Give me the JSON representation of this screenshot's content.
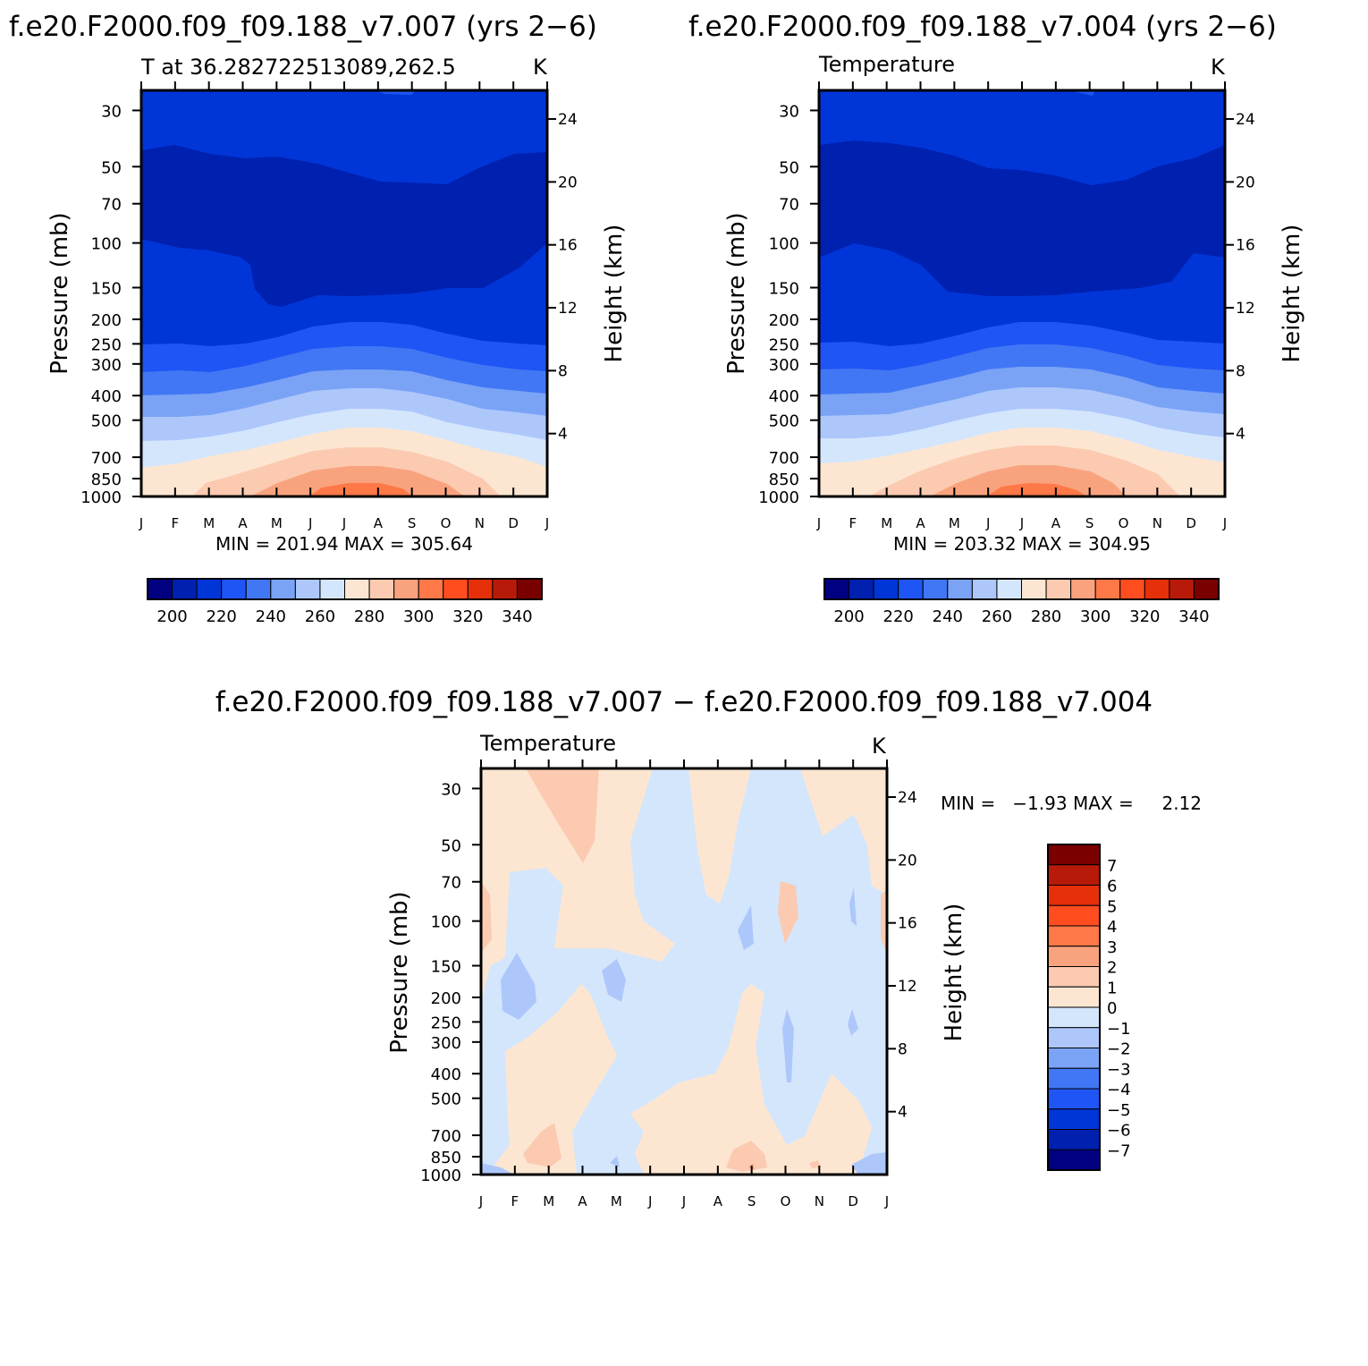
{
  "figure": {
    "panel1_title": "f.e20.F2000.f09_f09.188_v7.007 (yrs 2−6)",
    "panel2_title": "f.e20.F2000.f09_f09.188_v7.004 (yrs 2−6)",
    "diff_title": "f.e20.F2000.f09_f09.188_v7.007 − f.e20.F2000.f09_f09.188_v7.004"
  },
  "chart_data": [
    {
      "type": "heatmap",
      "title": "f.e20.F2000.f09_f09.188_v7.007 (yrs 2−6)",
      "subtitle": "T at 36.282722513089,262.5",
      "units": "K",
      "xlabel": "",
      "ylabel": "Pressure (mb)",
      "ylabel_right": "Height (km)",
      "x_ticks": [
        "J",
        "F",
        "M",
        "A",
        "M",
        "J",
        "J",
        "A",
        "S",
        "O",
        "N",
        "D",
        "J"
      ],
      "y_ticks": [
        30,
        50,
        70,
        100,
        150,
        200,
        250,
        300,
        400,
        500,
        700,
        850,
        1000
      ],
      "y_right_ticks": [
        4,
        8,
        12,
        16,
        20,
        24
      ],
      "ylim": [
        1000,
        25
      ],
      "y_scale": "log",
      "stats": "MIN = 201.94 MAX = 305.64",
      "colorbar_labels": [
        200,
        220,
        240,
        260,
        280,
        300,
        320,
        340
      ],
      "colorbar_colors": [
        "#000080",
        "#0020b0",
        "#0036d8",
        "#1f55f4",
        "#4177f4",
        "#7aa3f6",
        "#adc7fb",
        "#d4e6fc",
        "#fde6d1",
        "#fbcab0",
        "#f9a37e",
        "#ff7847",
        "#ff4d1f",
        "#e6300a",
        "#b81a0a",
        "#7a0000"
      ]
    },
    {
      "type": "heatmap",
      "title": "f.e20.F2000.f09_f09.188_v7.004 (yrs 2−6)",
      "subtitle": "Temperature",
      "units": "K",
      "xlabel": "",
      "ylabel": "Pressure (mb)",
      "ylabel_right": "Height (km)",
      "x_ticks": [
        "J",
        "F",
        "M",
        "A",
        "M",
        "J",
        "J",
        "A",
        "S",
        "O",
        "N",
        "D",
        "J"
      ],
      "y_ticks": [
        30,
        50,
        70,
        100,
        150,
        200,
        250,
        300,
        400,
        500,
        700,
        850,
        1000
      ],
      "y_right_ticks": [
        4,
        8,
        12,
        16,
        20,
        24
      ],
      "ylim": [
        1000,
        25
      ],
      "y_scale": "log",
      "stats": "MIN = 203.32 MAX = 304.95",
      "colorbar_labels": [
        200,
        220,
        240,
        260,
        280,
        300,
        320,
        340
      ],
      "colorbar_colors": [
        "#000080",
        "#0020b0",
        "#0036d8",
        "#1f55f4",
        "#4177f4",
        "#7aa3f6",
        "#adc7fb",
        "#d4e6fc",
        "#fde6d1",
        "#fbcab0",
        "#f9a37e",
        "#ff7847",
        "#ff4d1f",
        "#e6300a",
        "#b81a0a",
        "#7a0000"
      ]
    },
    {
      "type": "heatmap",
      "title": "f.e20.F2000.f09_f09.188_v7.007 − f.e20.F2000.f09_f09.188_v7.004",
      "subtitle": "Temperature",
      "units": "K",
      "xlabel": "",
      "ylabel": "Pressure (mb)",
      "ylabel_right": "Height (km)",
      "x_ticks": [
        "J",
        "F",
        "M",
        "A",
        "M",
        "J",
        "J",
        "A",
        "S",
        "O",
        "N",
        "D",
        "J"
      ],
      "y_ticks": [
        30,
        50,
        70,
        100,
        150,
        200,
        250,
        300,
        400,
        500,
        700,
        850,
        1000
      ],
      "y_right_ticks": [
        4,
        8,
        12,
        16,
        20,
        24
      ],
      "ylim": [
        1000,
        25
      ],
      "y_scale": "log",
      "stats": "MIN =   −1.93 MAX =     2.12",
      "colorbar_labels": [
        "7",
        "6",
        "5",
        "4",
        "3",
        "2",
        "1",
        "0",
        "−1",
        "−2",
        "−3",
        "−4",
        "−5",
        "−6",
        "−7"
      ],
      "colorbar_colors": [
        "#7a0000",
        "#b81a0a",
        "#e6300a",
        "#ff4d1f",
        "#ff7847",
        "#f9a37e",
        "#fbcab0",
        "#fde6d1",
        "#d4e6fc",
        "#adc7fb",
        "#7aa3f6",
        "#4177f4",
        "#1f55f4",
        "#0036d8",
        "#0020b0",
        "#000080"
      ]
    }
  ]
}
